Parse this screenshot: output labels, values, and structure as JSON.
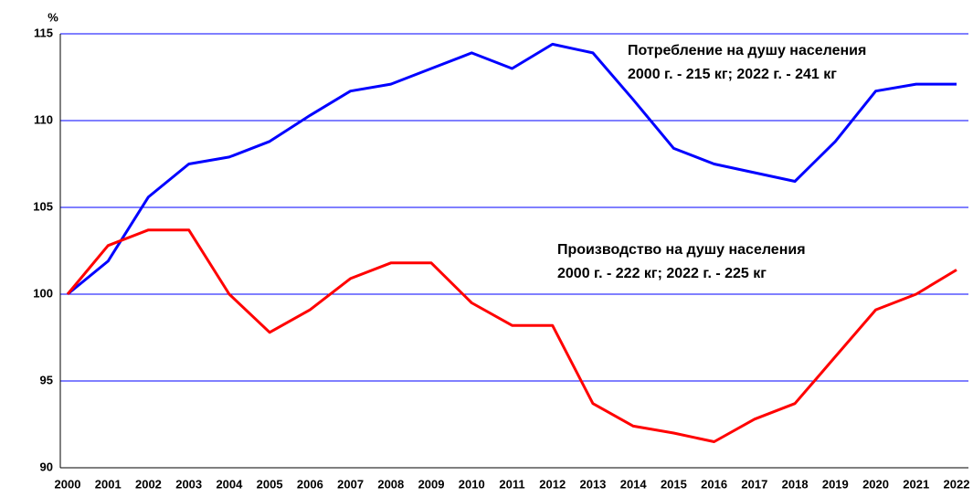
{
  "chart_data": {
    "type": "line",
    "y_label": "%",
    "x": [
      "2000",
      "2001",
      "2002",
      "2003",
      "2004",
      "2005",
      "2006",
      "2007",
      "2008",
      "2009",
      "2010",
      "2011",
      "2012",
      "2013",
      "2014",
      "2015",
      "2016",
      "2017",
      "2018",
      "2019",
      "2020",
      "2021",
      "2022"
    ],
    "series": [
      {
        "name": "Потребление на душу населения",
        "color": "#0000ff",
        "values": [
          100,
          101.9,
          105.6,
          107.5,
          107.9,
          108.8,
          110.3,
          111.7,
          112.1,
          113.0,
          113.9,
          113.0,
          114.4,
          113.9,
          111.2,
          108.4,
          107.5,
          107.0,
          106.5,
          108.8,
          111.7,
          112.1,
          112.1
        ]
      },
      {
        "name": "Производство на душу населения",
        "color": "#ff0000",
        "values": [
          100,
          102.8,
          103.7,
          103.7,
          100.0,
          97.8,
          99.1,
          100.9,
          101.8,
          101.8,
          99.5,
          98.2,
          98.2,
          93.7,
          92.4,
          92.0,
          91.5,
          92.8,
          93.7,
          96.4,
          99.1,
          100.0,
          101.4
        ]
      }
    ],
    "annotations": [
      "2000 г. - 215 кг; 2022 г. - 241 кг",
      "2000 г. - 222 кг; 2022 г. - 225 кг"
    ],
    "ylim": [
      90,
      115
    ],
    "yticks": [
      90,
      95,
      100,
      105,
      110,
      115
    ],
    "grid": true
  }
}
